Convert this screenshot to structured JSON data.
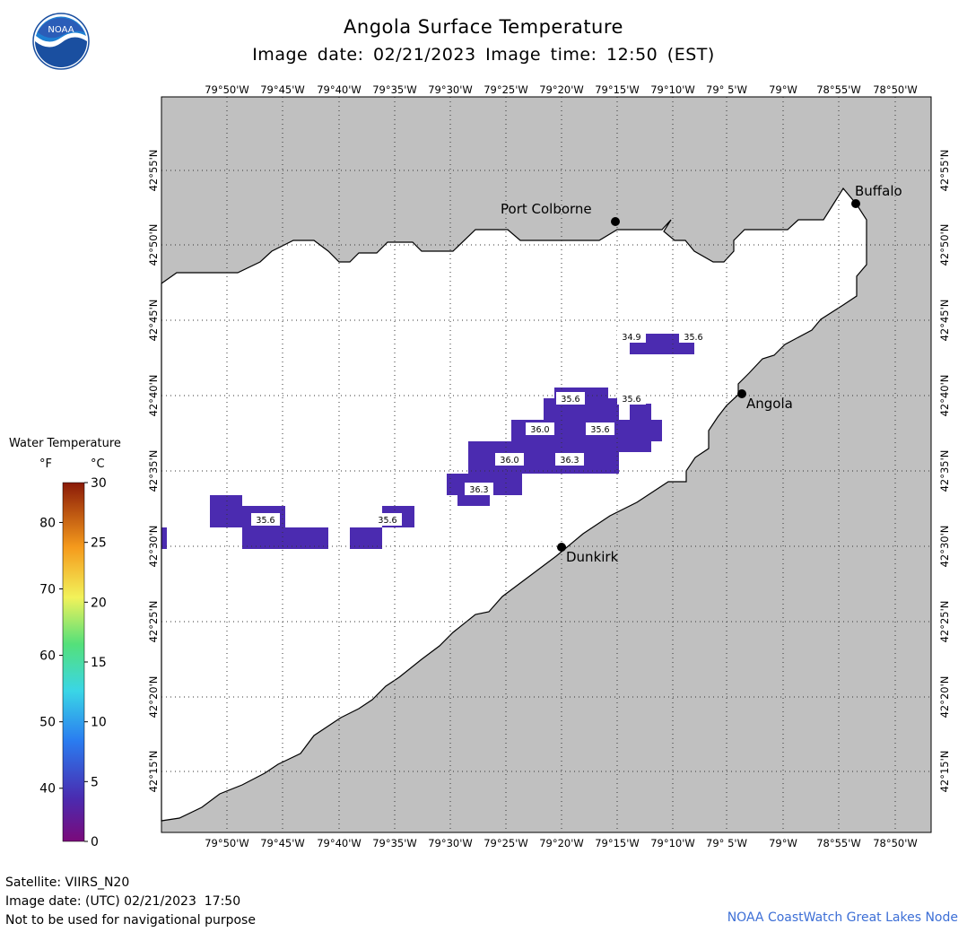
{
  "header": {
    "title": "Angola Surface Temperature",
    "date_label": "Image date: 02/21/2023",
    "time_label": "Image time: 12:50 (EST)"
  },
  "logo": {
    "text": "NOAA",
    "icon": "noaa-logo"
  },
  "map": {
    "longitude_labels": [
      "79°50'W",
      "79°45'W",
      "79°40'W",
      "79°35'W",
      "79°30'W",
      "79°25'W",
      "79°20'W",
      "79°15'W",
      "79°10'W",
      "79° 5'W",
      "79°W",
      "78°55'W",
      "78°50'W"
    ],
    "latitude_labels": [
      "42°55'N",
      "42°50'N",
      "42°45'N",
      "42°40'N",
      "42°35'N",
      "42°30'N",
      "42°25'N",
      "42°20'N",
      "42°15'N"
    ],
    "cities": [
      {
        "name": "Buffalo"
      },
      {
        "name": "Port Colborne"
      },
      {
        "name": "Angola"
      },
      {
        "name": "Dunkirk"
      }
    ],
    "temperature_labels": [
      "34.9",
      "35.6",
      "35.6",
      "35.6",
      "36.0",
      "35.6",
      "36.0",
      "36.3",
      "36.3",
      "35.6",
      "35.6"
    ],
    "colors": {
      "land": "#c0c0c0",
      "water": "#ffffff",
      "cold_pixels": "#4b2bb0",
      "grid": "#555555"
    }
  },
  "legend": {
    "title": "Water Temperature",
    "unit_f": "°F",
    "unit_c": "°C",
    "f_ticks": [
      "80",
      "70",
      "60",
      "50",
      "40"
    ],
    "c_ticks": [
      "30",
      "25",
      "20",
      "15",
      "10",
      "5",
      "0"
    ],
    "range_f": [
      32,
      86
    ],
    "range_c": [
      0,
      30
    ]
  },
  "footer": {
    "satellite": "Satellite: VIIRS_N20",
    "utc_date": "Image date: (UTC) 02/21/2023  17:50",
    "disclaimer": "Not to be used for navigational purpose",
    "credit": "NOAA CoastWatch Great Lakes Node"
  }
}
